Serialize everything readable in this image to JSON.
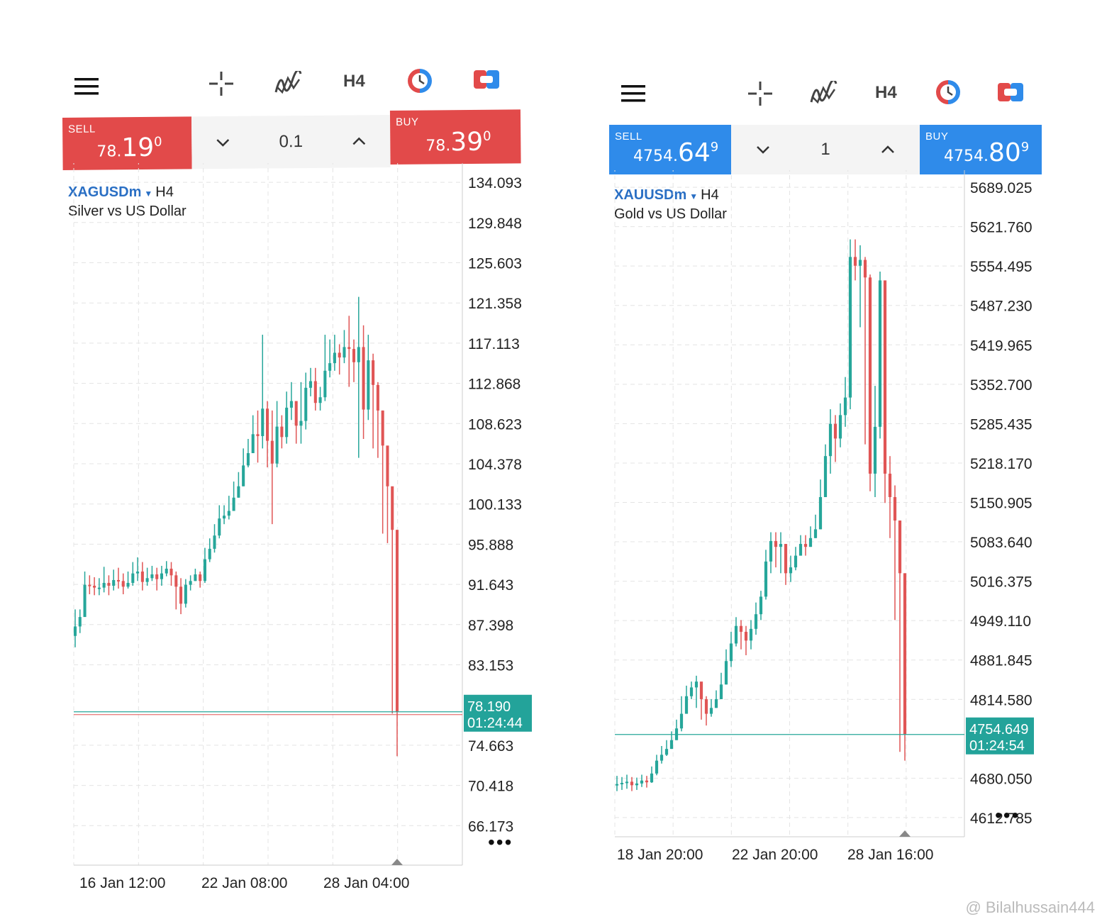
{
  "colors": {
    "sell_red": "#e24a4a",
    "buy_red": "#e24a4a",
    "sell_blue": "#2f8bea",
    "buy_blue": "#2f8bea",
    "bull": "#26a69a",
    "bear": "#e05555",
    "tag": "#23a39a",
    "grid": "#e4e4e4"
  },
  "toolbar": {
    "menu_icon": "hamburger-icon",
    "crosshair_icon": "crosshair-icon",
    "indicator_icon": "indicators-icon",
    "timeframe": "H4",
    "history_icon": "clock-icon",
    "trade_icon": "trade-icon"
  },
  "left": {
    "sell_label": "SELL",
    "sell_small": "78.",
    "sell_big": "19",
    "sell_sup": "0",
    "buy_label": "BUY",
    "buy_small": "78.",
    "buy_big": "39",
    "buy_sup": "0",
    "lot": "0.1",
    "down_icon": "chevron-down-icon",
    "up_icon": "chevron-up-icon",
    "symbol": "XAGUSDm",
    "timeframe": "H4",
    "description": "Silver vs US Dollar",
    "price_tag": "78.190",
    "countdown": "01:24:44"
  },
  "right": {
    "sell_label": "SELL",
    "sell_small": "4754.",
    "sell_big": "64",
    "sell_sup": "9",
    "buy_label": "BUY",
    "buy_small": "4754.",
    "buy_big": "80",
    "buy_sup": "9",
    "lot": "1",
    "down_icon": "chevron-down-icon",
    "up_icon": "chevron-up-icon",
    "symbol": "XAUUSDm",
    "timeframe": "H4",
    "description": "Gold vs US Dollar",
    "price_tag": "4754.649",
    "countdown": "01:24:54"
  },
  "more_icon": "more-dots-icon",
  "watermark": "@ Bilalhussain444",
  "chart_data": [
    {
      "type": "candlestick",
      "symbol": "XAGUSDm",
      "y_ticks": [
        "134.093",
        "129.848",
        "125.603",
        "121.358",
        "117.113",
        "112.868",
        "108.623",
        "104.378",
        "100.133",
        "95.888",
        "91.643",
        "87.398",
        "83.153",
        "74.663",
        "70.418",
        "66.173"
      ],
      "ylim": [
        62,
        135
      ],
      "x_ticks": [
        "16 Jan 12:00",
        "22 Jan 08:00",
        "28 Jan 04:00"
      ],
      "current_price": 78.19,
      "closes": [
        87.2,
        88.2,
        91.6,
        91.5,
        91.3,
        91.3,
        91.8,
        91.5,
        92.1,
        92.0,
        91.4,
        91.8,
        92.8,
        93.0,
        91.9,
        92.3,
        92.7,
        92.2,
        92.8,
        93.3,
        92.6,
        91.4,
        89.6,
        91.6,
        92.0,
        92.7,
        92.0,
        94.3,
        95.4,
        96.8,
        98.6,
        98.9,
        99.4,
        100.8,
        102.0,
        104.2,
        105.5,
        107.5,
        107.3,
        110.2,
        106.8,
        104.4,
        108.3,
        107.2,
        110.3,
        111.0,
        108.4,
        108.9,
        112.4,
        113.1,
        110.8,
        111.4,
        114.2,
        115.0,
        116.1,
        115.6,
        116.7,
        116.5,
        115.1,
        116.7,
        110.1,
        115.3,
        112.7,
        110.0,
        106.3,
        102.0,
        97.4,
        78.19
      ],
      "highs": [
        89.0,
        89.0,
        93.0,
        92.6,
        92.4,
        92.3,
        93.5,
        92.6,
        93.2,
        93.4,
        92.8,
        93.0,
        94.0,
        94.5,
        94.0,
        93.4,
        93.6,
        93.4,
        93.6,
        94.1,
        94.0,
        93.0,
        92.3,
        92.2,
        92.6,
        93.3,
        93.0,
        95.5,
        96.5,
        98.0,
        100.0,
        100.0,
        101.0,
        102.5,
        103.5,
        106.0,
        107.0,
        109.5,
        110.0,
        118.0,
        111.0,
        110.0,
        111.0,
        109.5,
        112.0,
        113.0,
        111.0,
        113.0,
        114.0,
        114.5,
        114.5,
        112.5,
        118.0,
        117.5,
        118.0,
        117.0,
        118.5,
        120.0,
        117.5,
        122.0,
        119.0,
        118.0,
        116.0,
        113.0,
        110.0,
        105.0,
        100.0,
        97.4
      ],
      "lows": [
        85.0,
        86.5,
        90.0,
        90.6,
        90.5,
        90.5,
        90.8,
        90.5,
        91.0,
        91.2,
        90.6,
        91.2,
        91.5,
        92.0,
        91.0,
        91.5,
        92.0,
        91.0,
        91.5,
        92.5,
        91.5,
        89.0,
        88.5,
        89.2,
        91.0,
        92.0,
        91.3,
        91.8,
        94.0,
        95.0,
        96.5,
        98.0,
        98.5,
        99.5,
        100.8,
        102.0,
        104.0,
        105.5,
        104.5,
        106.0,
        104.0,
        98.0,
        104.0,
        106.0,
        106.5,
        109.0,
        106.5,
        106.5,
        108.0,
        111.5,
        110.0,
        110.0,
        111.0,
        113.5,
        114.2,
        113.8,
        115.0,
        112.5,
        113.0,
        105.0,
        107.0,
        109.0,
        106.0,
        105.0,
        97.0,
        96.0,
        78.0,
        73.5
      ]
    },
    {
      "type": "candlestick",
      "symbol": "XAUUSDm",
      "y_ticks": [
        "5689.025",
        "5621.760",
        "5554.495",
        "5487.230",
        "5419.965",
        "5352.700",
        "5285.435",
        "5218.170",
        "5150.905",
        "5083.640",
        "5016.375",
        "4949.110",
        "4881.845",
        "4814.580",
        "4680.050",
        "4612.785"
      ],
      "ylim": [
        4580,
        5700
      ],
      "x_ticks": [
        "18 Jan 20:00",
        "22 Jan 20:00",
        "28 Jan 16:00"
      ],
      "current_price": 4754.649,
      "closes": [
        4670,
        4672,
        4674,
        4668,
        4671,
        4676,
        4673,
        4688,
        4710,
        4720,
        4730,
        4745,
        4765,
        4790,
        4820,
        4835,
        4845,
        4815,
        4790,
        4800,
        4815,
        4840,
        4880,
        4910,
        4940,
        4930,
        4915,
        4935,
        4960,
        4990,
        5050,
        5085,
        5075,
        5080,
        5030,
        5040,
        5060,
        5080,
        5075,
        5090,
        5105,
        5160,
        5230,
        5285,
        5260,
        5300,
        5330,
        5570,
        5555,
        5565,
        5535,
        5200,
        5280,
        5530,
        5200,
        5160,
        5120,
        5030,
        4754.6
      ],
      "highs": [
        4684,
        4682,
        4686,
        4682,
        4681,
        4686,
        4684,
        4700,
        4720,
        4735,
        4745,
        4760,
        4780,
        4820,
        4838,
        4845,
        4855,
        4840,
        4820,
        4815,
        4830,
        4860,
        4900,
        4930,
        4955,
        4950,
        4940,
        4950,
        4980,
        5000,
        5070,
        5100,
        5100,
        5100,
        5080,
        5060,
        5075,
        5095,
        5095,
        5110,
        5130,
        5190,
        5250,
        5310,
        5300,
        5320,
        5365,
        5600,
        5600,
        5590,
        5570,
        5540,
        5350,
        5545,
        5420,
        5230,
        5180,
        5120,
        5030
      ],
      "lows": [
        4658,
        4660,
        4662,
        4658,
        4660,
        4665,
        4664,
        4672,
        4685,
        4705,
        4718,
        4730,
        4745,
        4760,
        4790,
        4815,
        4800,
        4780,
        4770,
        4785,
        4800,
        4815,
        4840,
        4870,
        4905,
        4900,
        4890,
        4900,
        4925,
        4950,
        4985,
        5030,
        5040,
        5030,
        5010,
        5015,
        5035,
        5060,
        5060,
        5075,
        5090,
        5105,
        5160,
        5200,
        5220,
        5245,
        5280,
        5310,
        5530,
        5450,
        5250,
        5170,
        5160,
        5260,
        5150,
        5090,
        4950,
        4725,
        4710
      ],
      "opens_note": ""
    }
  ]
}
